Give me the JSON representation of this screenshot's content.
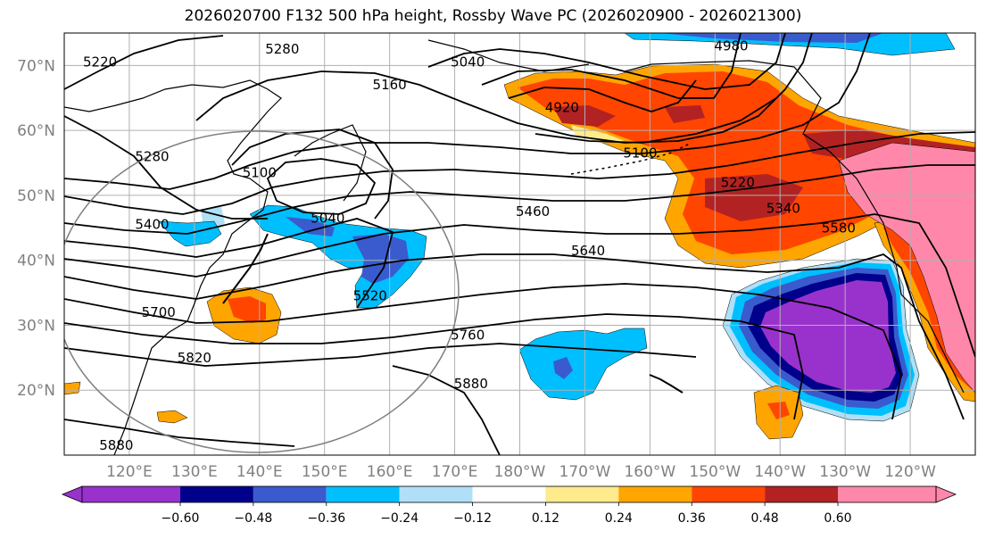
{
  "title": "2026020700 F132 500 hPa height, Rossby Wave PC (2026020900 - 2026021300)",
  "map": {
    "projection": "equirectangular",
    "lon_range": [
      110,
      250
    ],
    "lat_range": [
      10,
      75
    ],
    "lat_ticks": [
      {
        "lat": 70,
        "label": "70°N"
      },
      {
        "lat": 60,
        "label": "60°N"
      },
      {
        "lat": 50,
        "label": "50°N"
      },
      {
        "lat": 40,
        "label": "40°N"
      },
      {
        "lat": 30,
        "label": "30°N"
      },
      {
        "lat": 20,
        "label": "20°N"
      }
    ],
    "lon_ticks": [
      {
        "lon": 120,
        "label": "120°E"
      },
      {
        "lon": 130,
        "label": "130°E"
      },
      {
        "lon": 140,
        "label": "140°E"
      },
      {
        "lon": 150,
        "label": "150°E"
      },
      {
        "lon": 160,
        "label": "160°E"
      },
      {
        "lon": 170,
        "label": "170°E"
      },
      {
        "lon": 180,
        "label": "180°W"
      },
      {
        "lon": 190,
        "label": "170°W"
      },
      {
        "lon": 200,
        "label": "160°W"
      },
      {
        "lon": 210,
        "label": "150°W"
      },
      {
        "lon": 220,
        "label": "140°W"
      },
      {
        "lon": 230,
        "label": "130°W"
      },
      {
        "lon": 240,
        "label": "120°W"
      }
    ],
    "grid": true,
    "contour_labels": [
      {
        "text": "5220",
        "lon": 115.5,
        "lat": 70.5
      },
      {
        "text": "5280",
        "lon": 143.5,
        "lat": 72.5
      },
      {
        "text": "5160",
        "lon": 160,
        "lat": 67
      },
      {
        "text": "5040",
        "lon": 172,
        "lat": 70.5
      },
      {
        "text": "4980",
        "lon": 212.5,
        "lat": 73
      },
      {
        "text": "4920",
        "lon": 186.5,
        "lat": 63.5
      },
      {
        "text": "5100",
        "lon": 198.5,
        "lat": 56.5
      },
      {
        "text": "5220",
        "lon": 213.5,
        "lat": 52
      },
      {
        "text": "5340",
        "lon": 220.5,
        "lat": 48
      },
      {
        "text": "5580",
        "lon": 229,
        "lat": 45
      },
      {
        "text": "5280",
        "lon": 123.5,
        "lat": 56
      },
      {
        "text": "5100",
        "lon": 140,
        "lat": 53.5
      },
      {
        "text": "5040",
        "lon": 150.5,
        "lat": 46.5
      },
      {
        "text": "5400",
        "lon": 123.5,
        "lat": 45.5
      },
      {
        "text": "5460",
        "lon": 182,
        "lat": 47.5
      },
      {
        "text": "5640",
        "lon": 190.5,
        "lat": 41.5
      },
      {
        "text": "5520",
        "lon": 157,
        "lat": 34.5
      },
      {
        "text": "5700",
        "lon": 124.5,
        "lat": 32
      },
      {
        "text": "5760",
        "lon": 172,
        "lat": 28.5
      },
      {
        "text": "5820",
        "lon": 130,
        "lat": 25
      },
      {
        "text": "5880",
        "lon": 172.5,
        "lat": 21
      },
      {
        "text": "5880",
        "lon": 118,
        "lat": 11.5
      }
    ]
  },
  "colorbar": {
    "colors": [
      "#9932cc",
      "#00008b",
      "#3a5bcd",
      "#00bfff",
      "#b0e0f8",
      "#ffffff",
      "#ffeb8b",
      "#ffa500",
      "#ff4500",
      "#b22222",
      "#ff88aa"
    ],
    "tick_labels": [
      "−0.60",
      "−0.48",
      "−0.36",
      "−0.24",
      "−0.12",
      "0.12",
      "0.24",
      "0.36",
      "0.48",
      "0.60"
    ]
  }
}
